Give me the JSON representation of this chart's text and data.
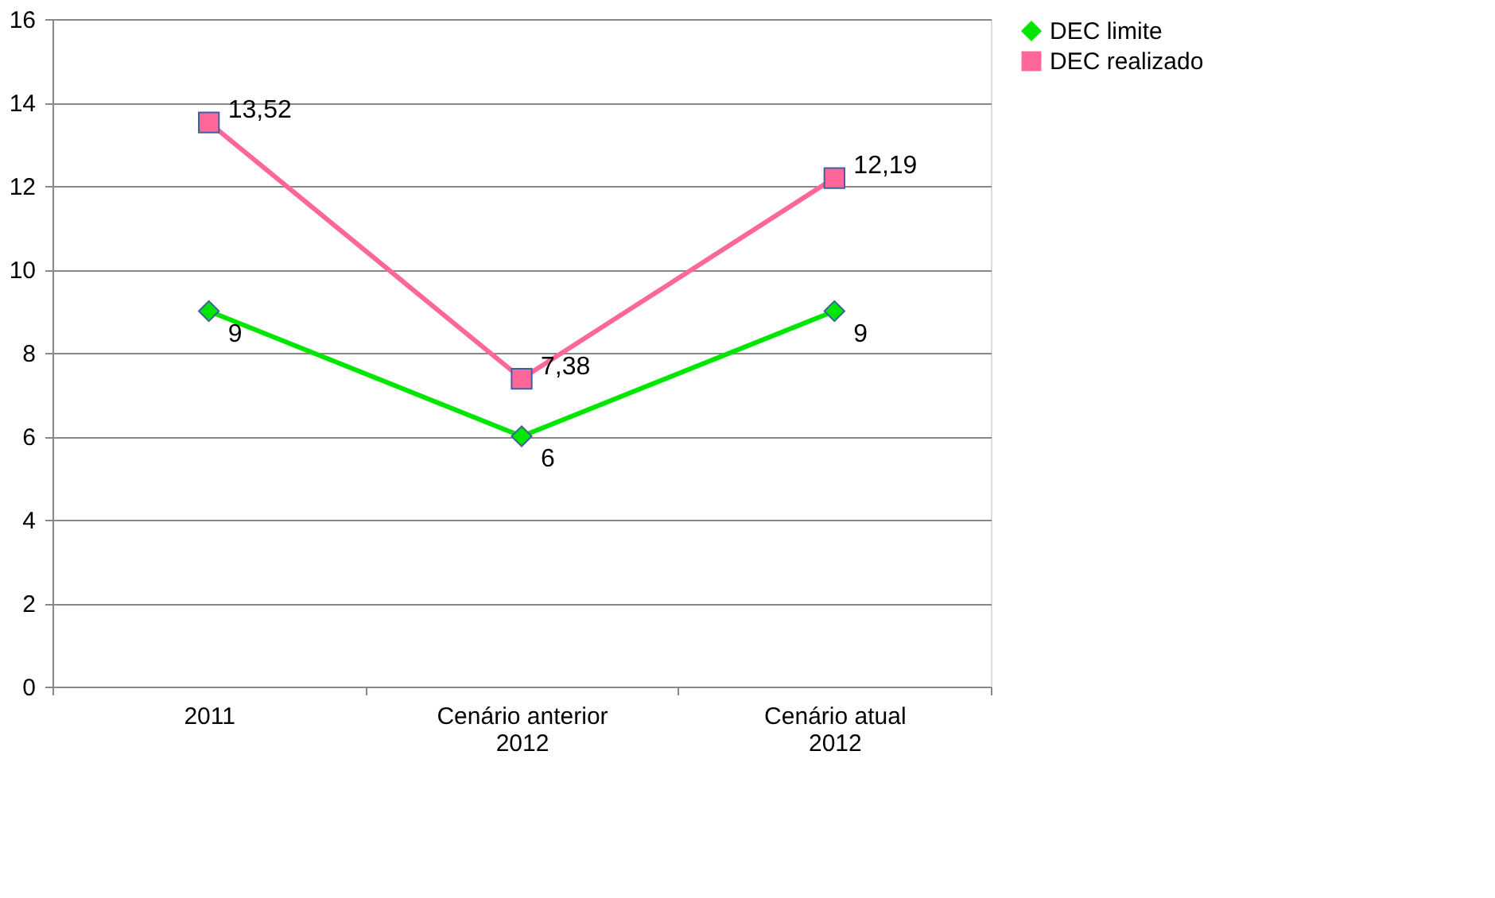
{
  "chart_data": {
    "type": "line",
    "categories": [
      "2011",
      "Cenário anterior\n2012",
      "Cenário atual\n2012"
    ],
    "series": [
      {
        "name": "DEC limite",
        "color": "#00e600",
        "marker": "diamond",
        "values": [
          9,
          6,
          9
        ],
        "value_labels": [
          "9",
          "6",
          "9"
        ]
      },
      {
        "name": "DEC realizado",
        "color": "#ff6699",
        "marker": "square",
        "values": [
          13.52,
          7.38,
          12.19
        ],
        "value_labels": [
          "13,52",
          "7,38",
          "12,19"
        ]
      }
    ],
    "ylim": [
      0,
      16
    ],
    "yticks": [
      0,
      2,
      4,
      6,
      8,
      10,
      12,
      14,
      16
    ],
    "grid": "y",
    "legend": "right"
  }
}
